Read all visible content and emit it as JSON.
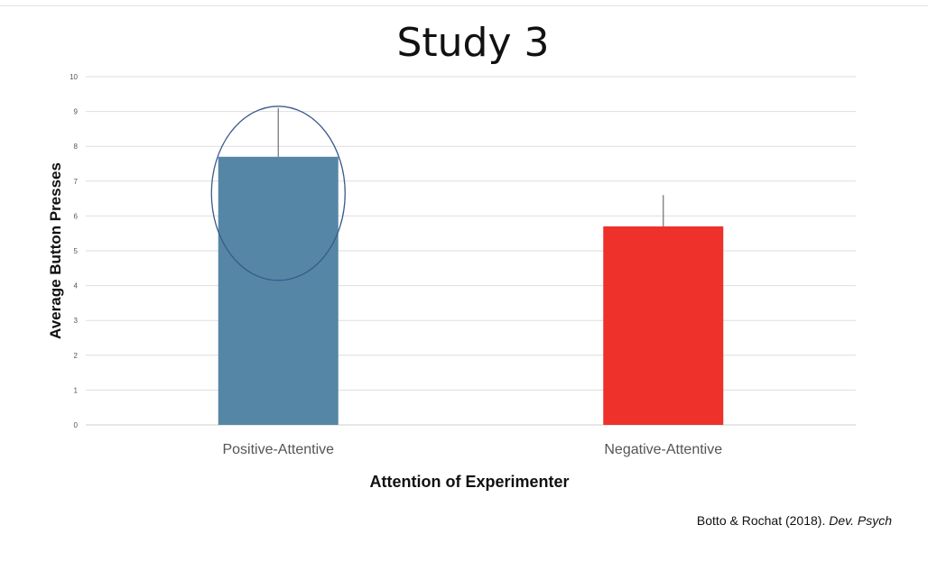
{
  "slide": {
    "title": "Study 3"
  },
  "citation": {
    "authors": "Botto & Rochat (2018). ",
    "journal": "Dev. Psych"
  },
  "chart_data": {
    "type": "bar",
    "title": "",
    "xlabel": "Attention of Experimenter",
    "ylabel": "Average Button Presses",
    "ylim": [
      0,
      10
    ],
    "yticks": [
      0,
      1,
      2,
      3,
      4,
      5,
      6,
      7,
      8,
      9,
      10
    ],
    "grid": true,
    "categories": [
      "Positive-Attentive",
      "Negative-Attentive"
    ],
    "values": [
      7.7,
      5.7
    ],
    "error_upper": [
      9.1,
      6.6
    ],
    "colors": [
      "#5586A6",
      "#EE312B"
    ],
    "highlight": {
      "category": "Positive-Attentive",
      "shape": "ellipse",
      "color": "#3A5A8C"
    }
  }
}
